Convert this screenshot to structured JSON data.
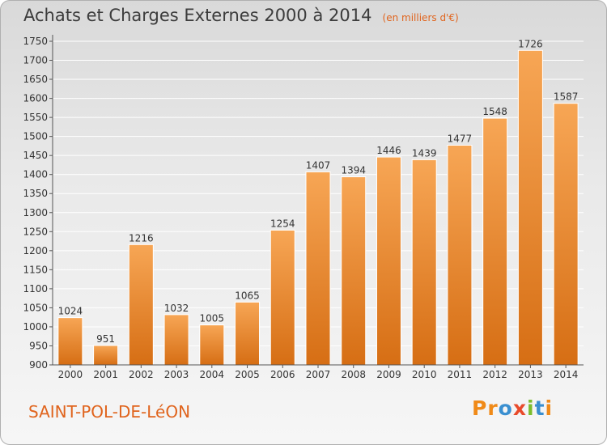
{
  "header": {
    "title": "Achats et Charges Externes 2000 à 2014",
    "unit": "(en milliers d'€)"
  },
  "footer": {
    "location": "SAINT-POL-DE-LéON",
    "brand": "Proxiti"
  },
  "colors": {
    "bar_top": "#f7a655",
    "bar_bottom": "#d66e14",
    "accent": "#e0641d"
  },
  "chart_data": {
    "type": "bar",
    "title": "Achats et Charges Externes 2000 à 2014",
    "subtitle": "(en milliers d'€)",
    "categories": [
      "2000",
      "2001",
      "2002",
      "2003",
      "2004",
      "2005",
      "2006",
      "2007",
      "2008",
      "2009",
      "2010",
      "2011",
      "2012",
      "2013",
      "2014"
    ],
    "values": [
      1024,
      951,
      1216,
      1032,
      1005,
      1065,
      1254,
      1407,
      1394,
      1446,
      1439,
      1477,
      1548,
      1726,
      1587
    ],
    "ylim": [
      900,
      1750
    ],
    "yticks": [
      900,
      950,
      1000,
      1050,
      1100,
      1150,
      1200,
      1250,
      1300,
      1350,
      1400,
      1450,
      1500,
      1550,
      1600,
      1650,
      1700,
      1750
    ],
    "grid": true,
    "xlabel": "",
    "ylabel": ""
  }
}
